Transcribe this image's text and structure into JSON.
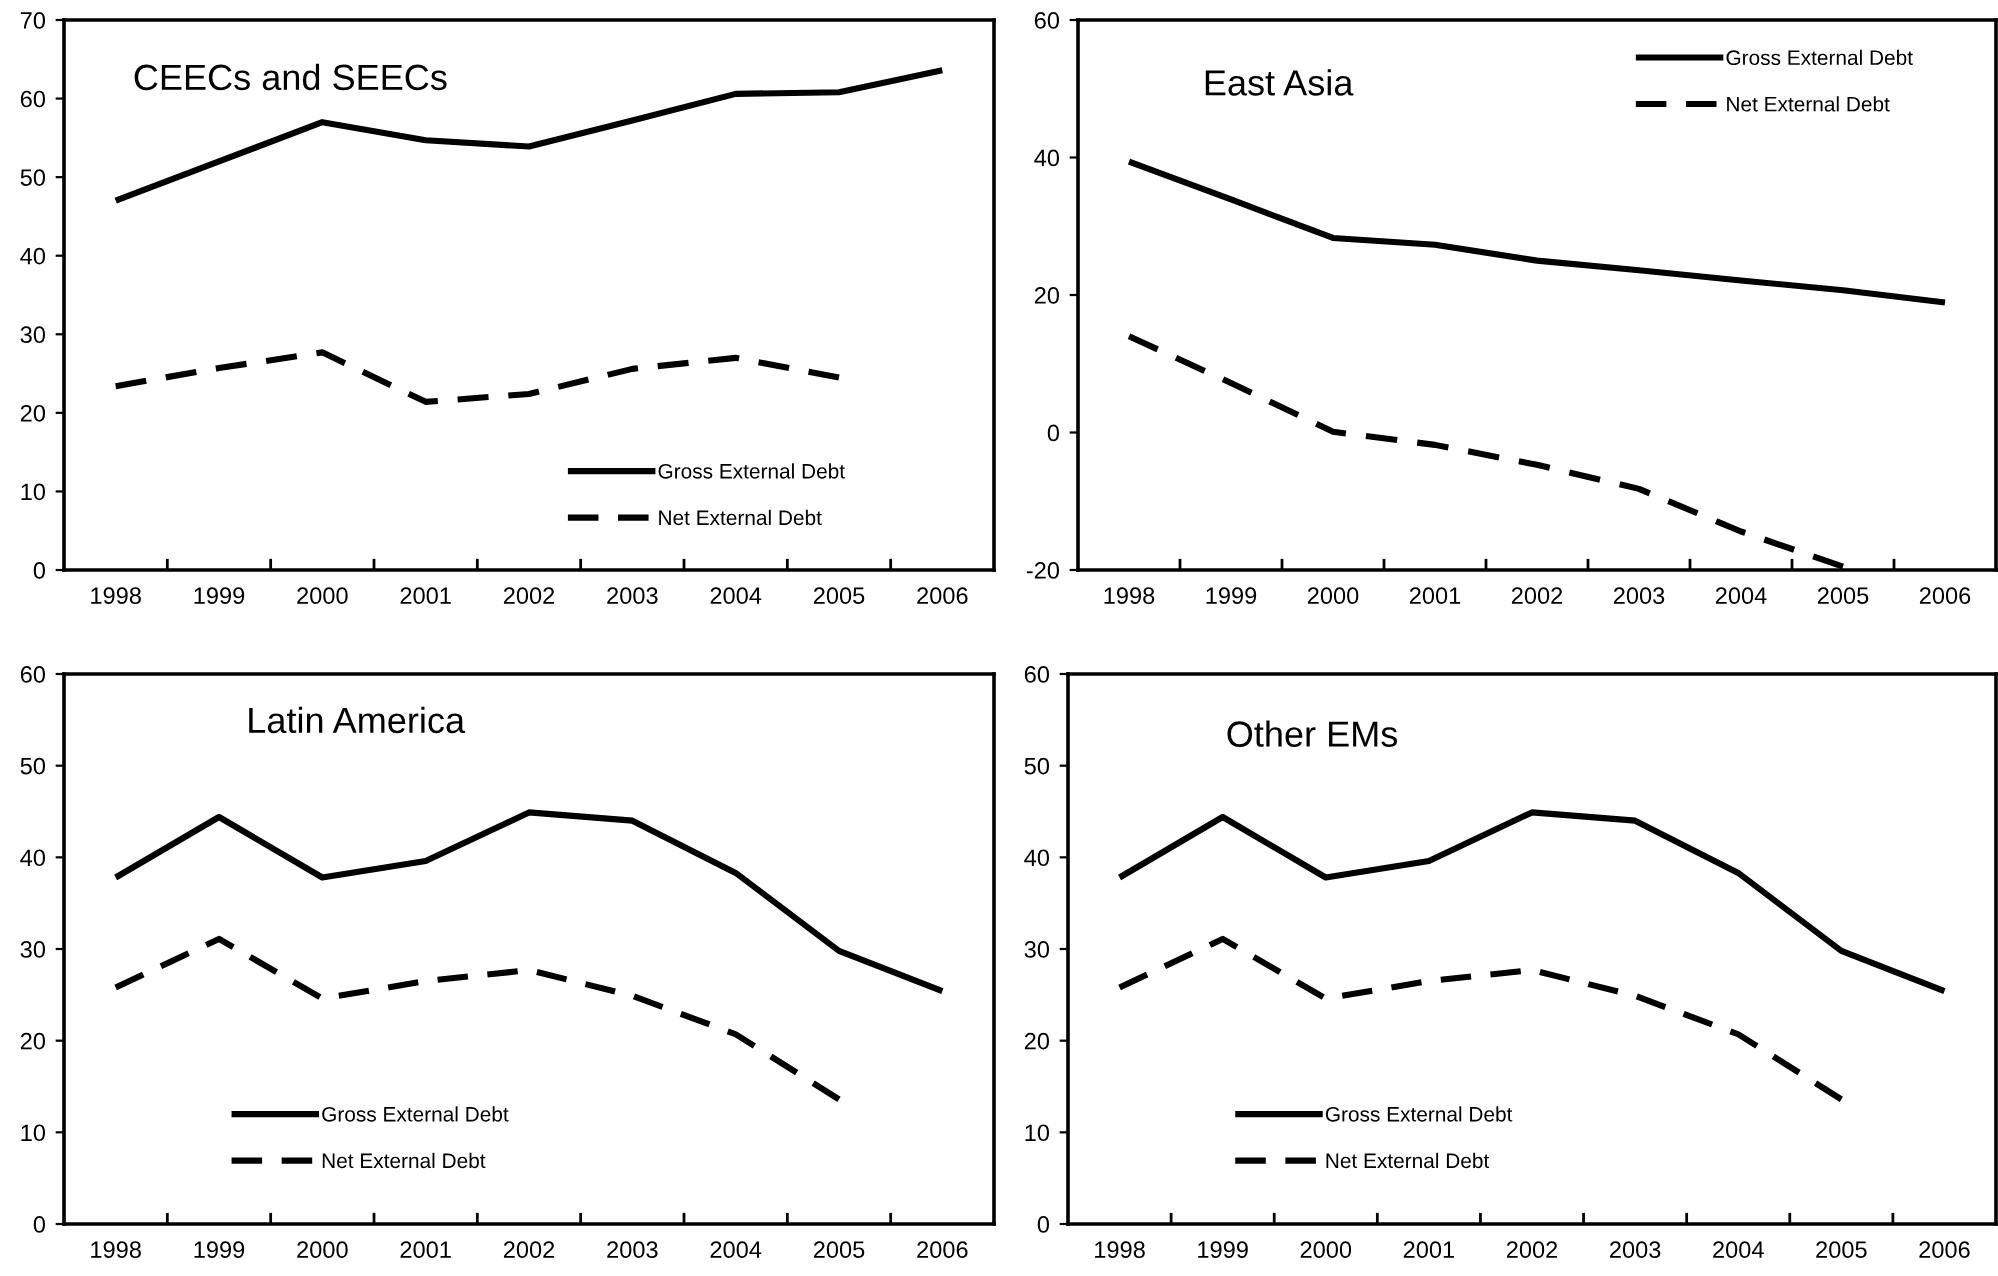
{
  "chart_data": [
    {
      "type": "line",
      "title": "CEECs and SEECs",
      "categories": [
        "1998",
        "1999",
        "2000",
        "2001",
        "2002",
        "2003",
        "2004",
        "2005",
        "2006"
      ],
      "ylim": [
        0,
        70
      ],
      "yticks": [
        0,
        10,
        20,
        30,
        40,
        50,
        60,
        70
      ],
      "legend": "bottom right",
      "series": [
        {
          "name": "Gross External Debt",
          "color": "#000000",
          "line_style": "solid",
          "values": [
            47.0,
            52.0,
            57.0,
            54.7,
            53.9,
            57.2,
            60.6,
            60.8,
            63.6
          ]
        },
        {
          "name": "Net External Debt",
          "color": "#000000",
          "line_style": "dashed",
          "values": [
            23.4,
            25.7,
            27.7,
            21.4,
            22.4,
            25.6,
            27.0,
            24.5,
            null
          ]
        }
      ]
    },
    {
      "type": "line",
      "title": "East Asia",
      "categories": [
        "1998",
        "1999",
        "2000",
        "2001",
        "2002",
        "2003",
        "2004",
        "2005",
        "2006"
      ],
      "ylim": [
        -20,
        60
      ],
      "yticks": [
        -20,
        0,
        20,
        40,
        60
      ],
      "legend": "top right",
      "series": [
        {
          "name": "Gross External Debt",
          "color": "#000000",
          "line_style": "solid",
          "values": [
            39.4,
            33.9,
            28.3,
            27.3,
            25.0,
            23.6,
            22.1,
            20.7,
            18.9
          ]
        },
        {
          "name": "Net External Debt",
          "color": "#000000",
          "line_style": "dashed",
          "values": [
            14.0,
            7.2,
            0.1,
            -1.8,
            -4.7,
            -8.2,
            -14.4,
            -19.5,
            null
          ]
        }
      ]
    },
    {
      "type": "line",
      "title": "Latin America",
      "categories": [
        "1998",
        "1999",
        "2000",
        "2001",
        "2002",
        "2003",
        "2004",
        "2005",
        "2006"
      ],
      "ylim": [
        0,
        60
      ],
      "yticks": [
        0,
        10,
        20,
        30,
        40,
        50,
        60
      ],
      "legend": "bottom left",
      "series": [
        {
          "name": "Gross External Debt",
          "color": "#000000",
          "line_style": "solid",
          "values": [
            37.8,
            44.4,
            37.8,
            39.6,
            44.9,
            44.0,
            38.3,
            29.8,
            25.4
          ]
        },
        {
          "name": "Net External Debt",
          "color": "#000000",
          "line_style": "dashed",
          "values": [
            25.8,
            31.1,
            24.6,
            26.5,
            27.7,
            24.9,
            20.7,
            13.6,
            null
          ]
        }
      ]
    },
    {
      "type": "line",
      "title": "Other EMs",
      "categories": [
        "1998",
        "1999",
        "2000",
        "2001",
        "2002",
        "2003",
        "2004",
        "2005",
        "2006"
      ],
      "ylim": [
        0,
        60
      ],
      "yticks": [
        0,
        10,
        20,
        30,
        40,
        50,
        60
      ],
      "legend": "bottom left",
      "series": [
        {
          "name": "Gross External Debt",
          "color": "#000000",
          "line_style": "solid",
          "values": [
            37.8,
            44.4,
            37.8,
            39.6,
            44.9,
            44.0,
            38.3,
            29.8,
            25.4
          ]
        },
        {
          "name": "Net External Debt",
          "color": "#000000",
          "line_style": "dashed",
          "values": [
            25.8,
            31.1,
            24.6,
            26.5,
            27.7,
            24.9,
            20.7,
            13.6,
            null
          ]
        }
      ]
    }
  ]
}
